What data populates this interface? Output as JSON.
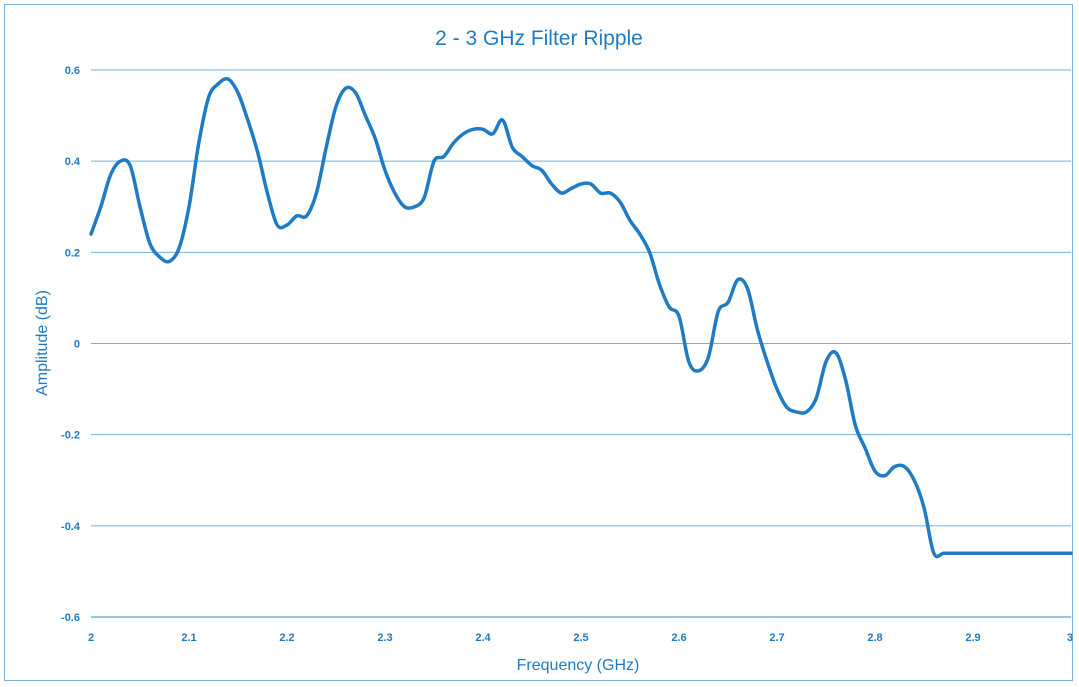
{
  "chart_data": {
    "type": "line",
    "title": "2 - 3 GHz Filter Ripple",
    "xlabel": "Frequency (GHz)",
    "ylabel": "Amplitude (dB)",
    "xlim": [
      2,
      3
    ],
    "ylim": [
      -0.6,
      0.6
    ],
    "x_ticks": [
      2,
      2.1,
      2.2,
      2.3,
      2.4,
      2.5,
      2.6,
      2.7,
      2.8,
      2.9,
      3
    ],
    "x_tick_labels": [
      "2",
      "2.1",
      "2.2",
      "2.3",
      "2.4",
      "2.5",
      "2.6",
      "2.7",
      "2.8",
      "2.9",
      "3"
    ],
    "y_ticks": [
      0.6,
      0.4,
      0.2,
      0,
      -0.2,
      -0.4,
      -0.6
    ],
    "y_tick_labels": [
      "0.6",
      "0.4",
      "0.2",
      "0",
      "-0.2",
      "-0.4",
      "-0.6"
    ],
    "grid": "horizontal",
    "colors": {
      "line": "#1f7bc4",
      "text": "#1f7bc4",
      "grid": "#6fb0e0"
    },
    "series": [
      {
        "x": [
          2.0,
          2.01,
          2.02,
          2.03,
          2.04,
          2.05,
          2.06,
          2.07,
          2.08,
          2.09,
          2.1,
          2.11,
          2.12,
          2.13,
          2.14,
          2.15,
          2.16,
          2.17,
          2.18,
          2.19,
          2.2,
          2.21,
          2.22,
          2.23,
          2.24,
          2.25,
          2.26,
          2.27,
          2.28,
          2.29,
          2.3,
          2.31,
          2.32,
          2.33,
          2.34,
          2.35,
          2.36,
          2.37,
          2.38,
          2.39,
          2.4,
          2.41,
          2.42,
          2.43,
          2.44,
          2.45,
          2.46,
          2.47,
          2.48,
          2.49,
          2.5,
          2.51,
          2.52,
          2.53,
          2.54,
          2.55,
          2.56,
          2.57,
          2.58,
          2.59,
          2.6,
          2.61,
          2.62,
          2.63,
          2.64,
          2.65,
          2.66,
          2.67,
          2.68,
          2.69,
          2.7,
          2.71,
          2.72,
          2.73,
          2.74,
          2.75,
          2.76,
          2.77,
          2.78,
          2.79,
          2.8,
          2.81,
          2.82,
          2.83,
          2.84,
          2.85,
          2.86,
          2.87,
          2.88,
          2.89,
          2.9,
          2.91,
          2.92,
          2.93,
          2.94,
          2.95,
          2.96,
          2.97,
          2.98,
          2.99,
          3.0
        ],
        "y": [
          0.24,
          0.3,
          0.37,
          0.4,
          0.39,
          0.3,
          0.22,
          0.19,
          0.18,
          0.21,
          0.3,
          0.44,
          0.54,
          0.57,
          0.58,
          0.55,
          0.49,
          0.42,
          0.33,
          0.26,
          0.26,
          0.28,
          0.28,
          0.33,
          0.43,
          0.52,
          0.56,
          0.55,
          0.5,
          0.45,
          0.38,
          0.33,
          0.3,
          0.3,
          0.32,
          0.4,
          0.41,
          0.44,
          0.46,
          0.47,
          0.47,
          0.46,
          0.49,
          0.43,
          0.41,
          0.39,
          0.38,
          0.35,
          0.33,
          0.34,
          0.35,
          0.35,
          0.33,
          0.33,
          0.31,
          0.27,
          0.24,
          0.2,
          0.13,
          0.08,
          0.06,
          -0.04,
          -0.06,
          -0.03,
          0.07,
          0.09,
          0.14,
          0.12,
          0.03,
          -0.04,
          -0.1,
          -0.14,
          -0.15,
          -0.15,
          -0.12,
          -0.04,
          -0.02,
          -0.08,
          -0.18,
          -0.23,
          -0.28,
          -0.29,
          -0.27,
          -0.27,
          -0.3,
          -0.36,
          -0.46,
          -0.46,
          -0.46,
          -0.46,
          -0.46,
          -0.46,
          -0.46,
          -0.46,
          -0.46,
          -0.46,
          -0.46,
          -0.46,
          -0.46,
          -0.46,
          -0.46
        ]
      }
    ]
  }
}
